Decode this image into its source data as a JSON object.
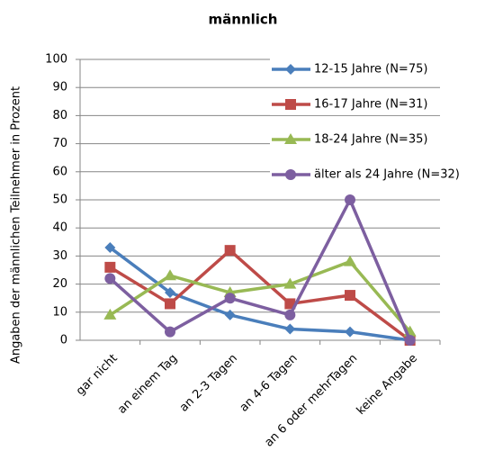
{
  "chart_data": {
    "type": "line",
    "title": "männlich",
    "y_label": "Angaben der männlichen Teilnehmer in Prozent",
    "categories": [
      "gar nicht",
      "an einem Tag",
      "an 2-3 Tagen",
      "an 4-6 Tagen",
      "an 6 oder mehrTagen",
      "keine Angabe"
    ],
    "series": [
      {
        "name": "12-15 Jahre (N=75)",
        "color": "#4a7ebb",
        "marker": "diamond",
        "values": [
          33,
          17,
          9,
          4,
          3,
          0
        ]
      },
      {
        "name": "16-17 Jahre (N=31)",
        "color": "#be4b48",
        "marker": "square",
        "values": [
          26,
          13,
          32,
          13,
          16,
          0
        ]
      },
      {
        "name": "18-24 Jahre (N=35)",
        "color": "#98b954",
        "marker": "triangle",
        "values": [
          9,
          23,
          17,
          20,
          28,
          3
        ]
      },
      {
        "name": "älter als 24 Jahre (N=32)",
        "color": "#7d5fa0",
        "marker": "circle",
        "values": [
          22,
          3,
          15,
          9,
          50,
          0
        ]
      }
    ],
    "ylim": [
      0,
      100
    ],
    "yticks": [
      0,
      10,
      20,
      30,
      40,
      50,
      60,
      70,
      80,
      90,
      100
    ],
    "grid": true,
    "legend": "right"
  }
}
